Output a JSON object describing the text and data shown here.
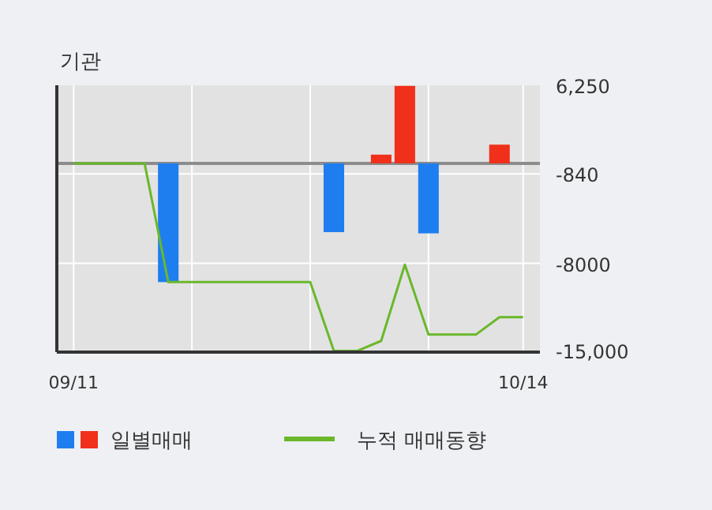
{
  "chart_data": {
    "type": "bar",
    "title": "기관",
    "categories": [
      "09/11",
      null,
      null,
      null,
      null,
      null,
      null,
      null,
      null,
      null,
      null,
      null,
      null,
      null,
      null,
      null,
      null,
      null,
      null,
      "10/14"
    ],
    "series": [
      {
        "name": "일별매매",
        "colors": [
          "#1e7ef0",
          "#1e7ef0",
          "#1e7ef0",
          "#1e7ef0",
          "#1e7ef0",
          "#1e7ef0",
          "#1e7ef0",
          "#1e7ef0",
          "#1e7ef0",
          "#1e7ef0",
          "#1e7ef0",
          "#1e7ef0",
          "#1e7ef0",
          "#f0301a",
          "#f0301a",
          "#1e7ef0",
          "#1e7ef0",
          "#1e7ef0",
          "#f0301a",
          "#1e7ef0"
        ],
        "values": [
          null,
          null,
          null,
          null,
          -9500,
          null,
          null,
          null,
          null,
          null,
          null,
          -5500,
          null,
          700,
          6200,
          -5600,
          null,
          null,
          1500,
          null
        ]
      },
      {
        "name": "누적 매매동향",
        "type": "line",
        "color": "#6ab82a",
        "values": [
          0,
          0,
          0,
          0,
          -9500,
          -9500,
          -9500,
          -9500,
          -9500,
          -9500,
          -9500,
          -15000,
          -15000,
          -14200,
          -8100,
          -13700,
          -13700,
          -13700,
          -12300,
          -12300
        ]
      }
    ],
    "ylim": [
      -15100,
      6250
    ],
    "yticks": [
      {
        "value": 6250,
        "label": "6,250"
      },
      {
        "value": -840,
        "label": "-840"
      },
      {
        "value": -8000,
        "label": "-8000"
      },
      {
        "value": -15000,
        "label": "-15,000"
      }
    ],
    "ref_lines": [
      {
        "axis": "y",
        "value": 0,
        "color": "#8c8c8c"
      }
    ],
    "grid": true,
    "legend": "bottom"
  }
}
